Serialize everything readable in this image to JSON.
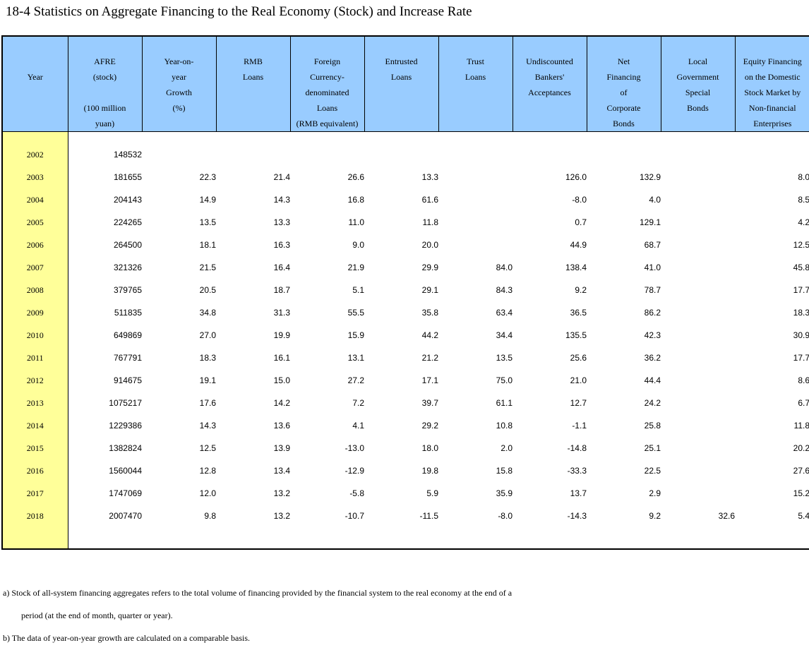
{
  "title": "18-4  Statistics on Aggregate Financing to the Real Economy (Stock) and Increase Rate",
  "columns": [
    "Year",
    "AFRE\n(stock)\n\n(100 million\nyuan)",
    "Year-on-\nyear\nGrowth\n(%)",
    "RMB\nLoans",
    "Foreign\nCurrency-\ndenominated\nLoans\n(RMB equivalent)",
    "Entrusted\nLoans",
    "Trust\nLoans",
    "Undiscounted\nBankers'\nAcceptances",
    "Net\nFinancing\nof\nCorporate\nBonds",
    "Local\nGovernment\nSpecial\nBonds",
    "Equity Financing\non the Domestic\nStock Market by\nNon-financial\nEnterprises"
  ],
  "rows": [
    [
      "2002",
      "148532",
      "",
      "",
      "",
      "",
      "",
      "",
      "",
      "",
      ""
    ],
    [
      "2003",
      "181655",
      "22.3",
      "21.4",
      "26.6",
      "13.3",
      "",
      "126.0",
      "132.9",
      "",
      "8.0"
    ],
    [
      "2004",
      "204143",
      "14.9",
      "14.3",
      "16.8",
      "61.6",
      "",
      "-8.0",
      "4.0",
      "",
      "8.5"
    ],
    [
      "2005",
      "224265",
      "13.5",
      "13.3",
      "11.0",
      "11.8",
      "",
      "0.7",
      "129.1",
      "",
      "4.2"
    ],
    [
      "2006",
      "264500",
      "18.1",
      "16.3",
      "9.0",
      "20.0",
      "",
      "44.9",
      "68.7",
      "",
      "12.5"
    ],
    [
      "2007",
      "321326",
      "21.5",
      "16.4",
      "21.9",
      "29.9",
      "84.0",
      "138.4",
      "41.0",
      "",
      "45.8"
    ],
    [
      "2008",
      "379765",
      "20.5",
      "18.7",
      "5.1",
      "29.1",
      "84.3",
      "9.2",
      "78.7",
      "",
      "17.7"
    ],
    [
      "2009",
      "511835",
      "34.8",
      "31.3",
      "55.5",
      "35.8",
      "63.4",
      "36.5",
      "86.2",
      "",
      "18.3"
    ],
    [
      "2010",
      "649869",
      "27.0",
      "19.9",
      "15.9",
      "44.2",
      "34.4",
      "135.5",
      "42.3",
      "",
      "30.9"
    ],
    [
      "2011",
      "767791",
      "18.3",
      "16.1",
      "13.1",
      "21.2",
      "13.5",
      "25.6",
      "36.2",
      "",
      "17.7"
    ],
    [
      "2012",
      "914675",
      "19.1",
      "15.0",
      "27.2",
      "17.1",
      "75.0",
      "21.0",
      "44.4",
      "",
      "8.6"
    ],
    [
      "2013",
      "1075217",
      "17.6",
      "14.2",
      "7.2",
      "39.7",
      "61.1",
      "12.7",
      "24.2",
      "",
      "6.7"
    ],
    [
      "2014",
      "1229386",
      "14.3",
      "13.6",
      "4.1",
      "29.2",
      "10.8",
      "-1.1",
      "25.8",
      "",
      "11.8"
    ],
    [
      "2015",
      "1382824",
      "12.5",
      "13.9",
      "-13.0",
      "18.0",
      "2.0",
      "-14.8",
      "25.1",
      "",
      "20.2"
    ],
    [
      "2016",
      "1560044",
      "12.8",
      "13.4",
      "-12.9",
      "19.8",
      "15.8",
      "-33.3",
      "22.5",
      "",
      "27.6"
    ],
    [
      "2017",
      "1747069",
      "12.0",
      "13.2",
      "-5.8",
      "5.9",
      "35.9",
      "13.7",
      "2.9",
      "",
      "15.2"
    ],
    [
      "2018",
      "2007470",
      "9.8",
      "13.2",
      "-10.7",
      "-11.5",
      "-8.0",
      "-14.3",
      "9.2",
      "32.6",
      "5.4"
    ]
  ],
  "notes": [
    "a) Stock of all-system financing aggregates refers to the total volume of financing provided by the financial system to the real economy at the end of a",
    "period (at the end of month, quarter or year).",
    "b) The data of year-on-year growth are calculated on a comparable basis."
  ]
}
